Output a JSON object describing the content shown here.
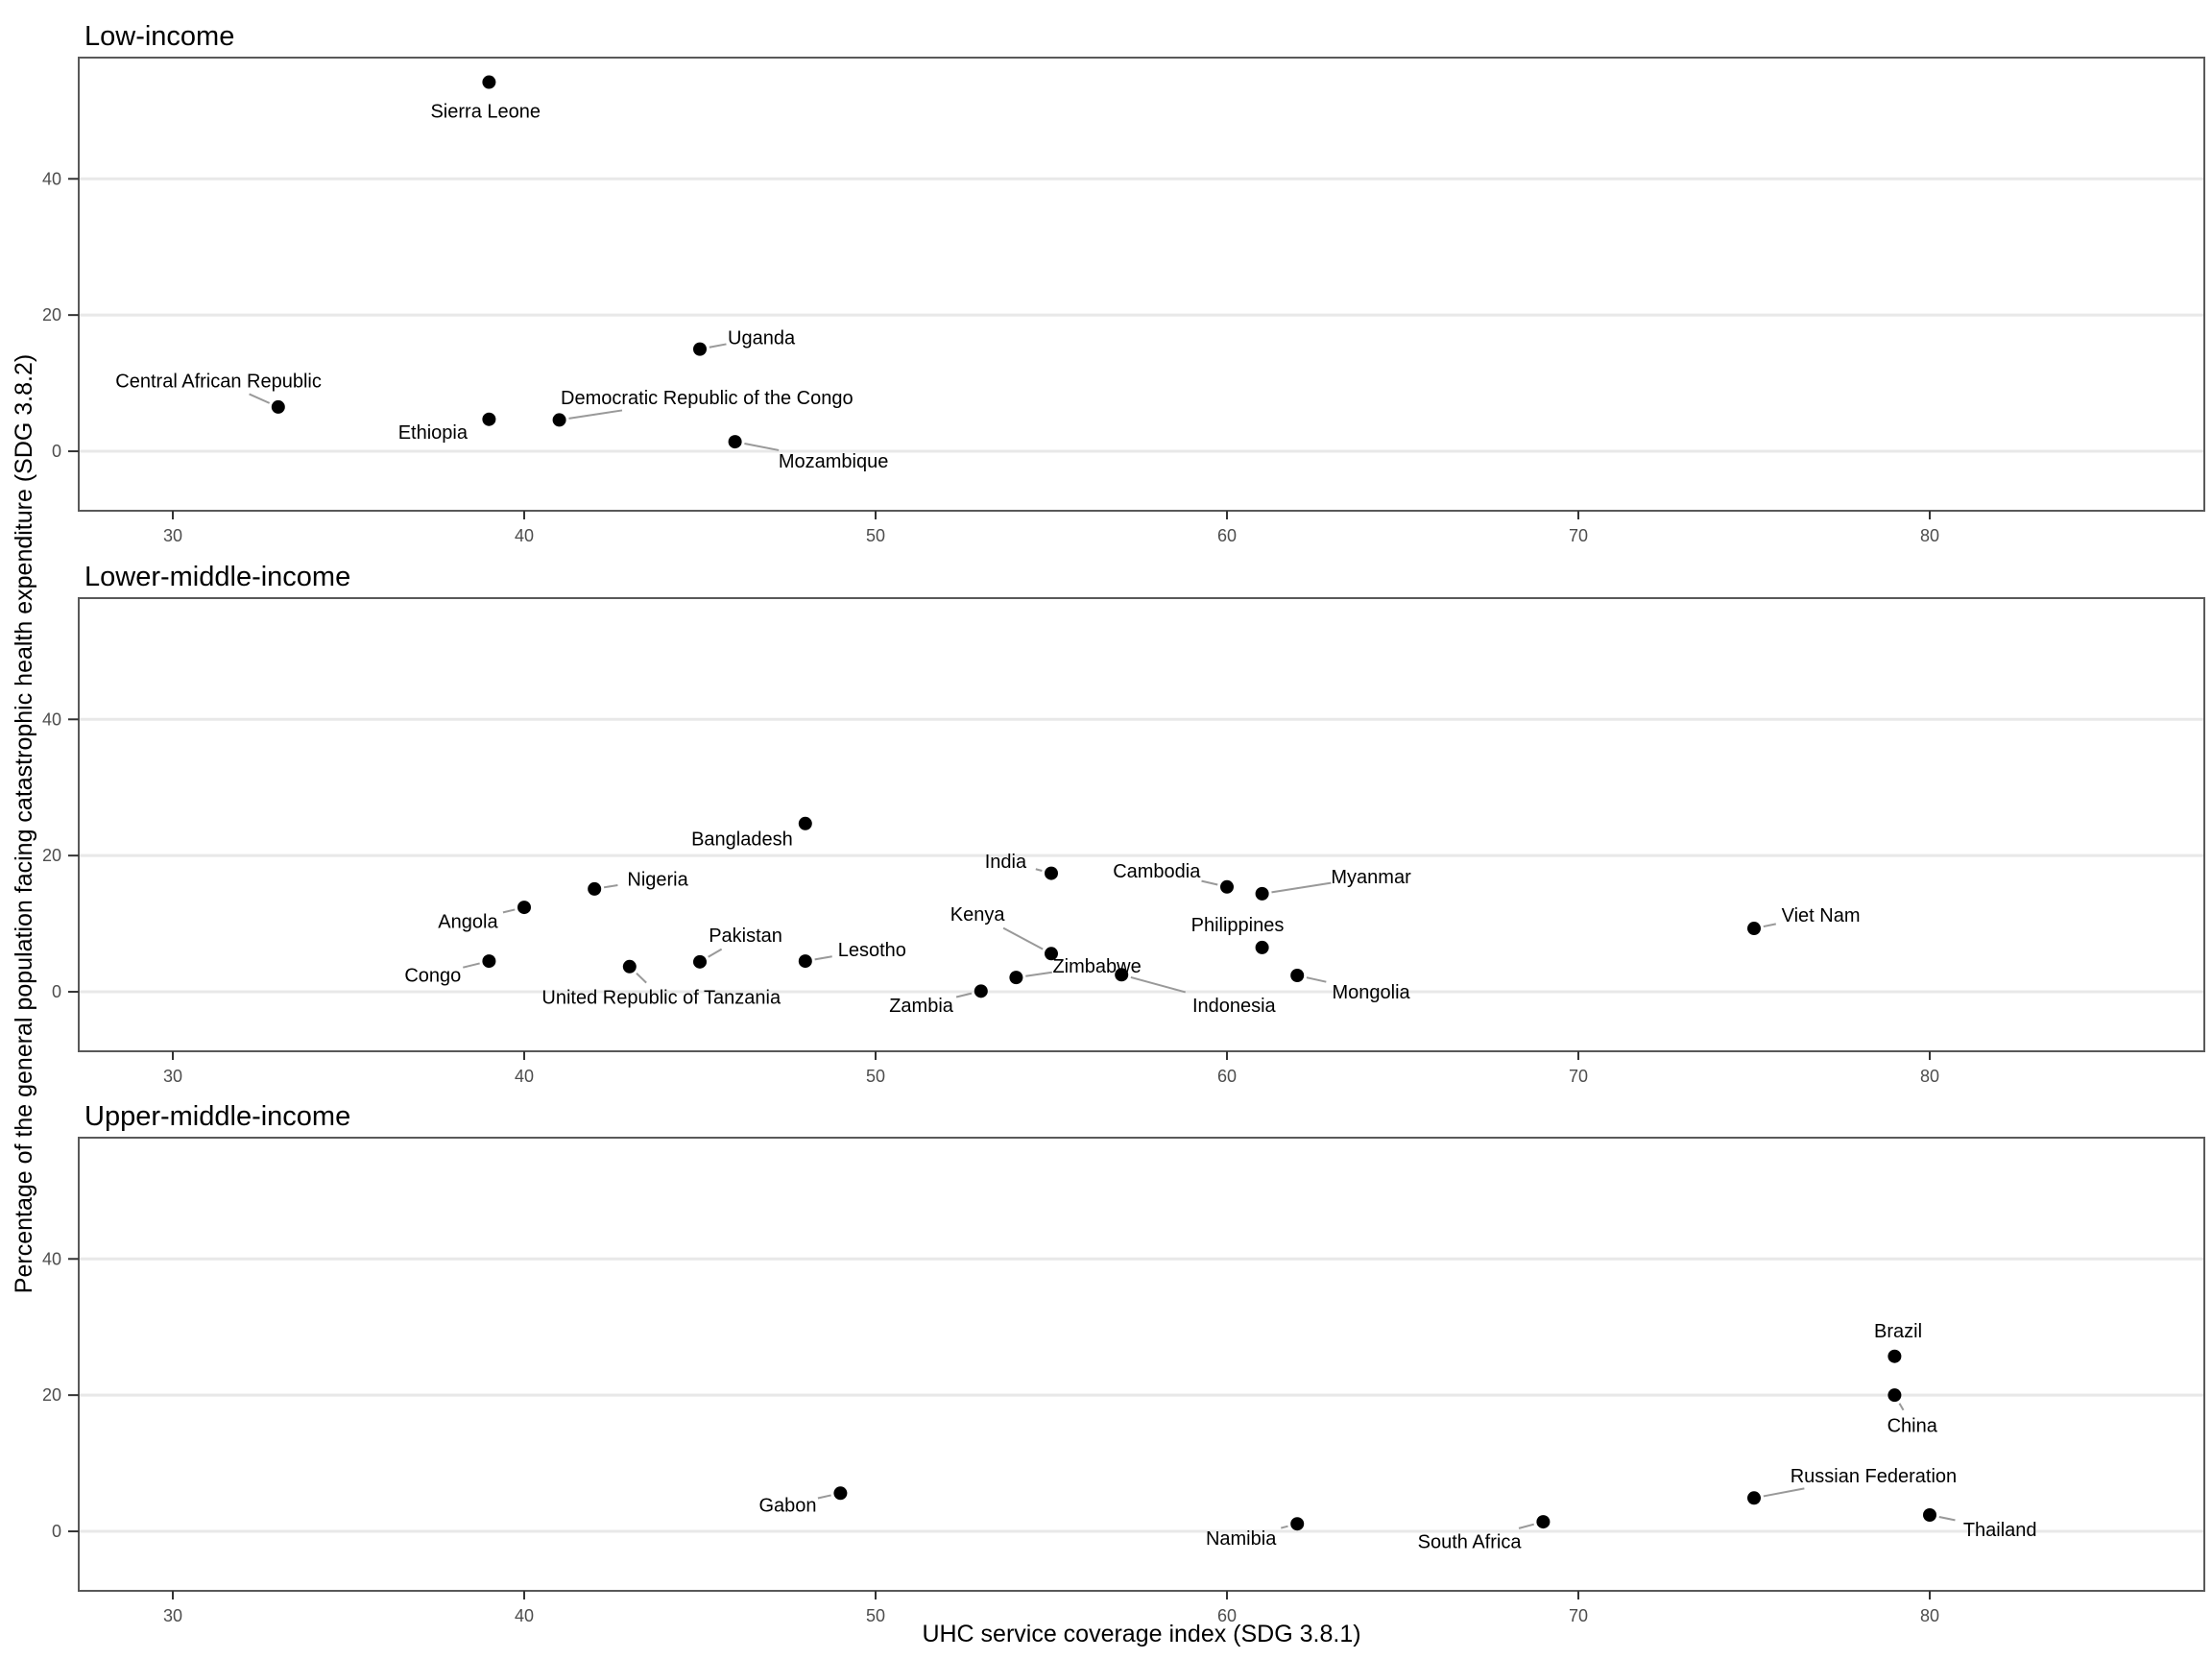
{
  "chart_data": {
    "type": "scatter",
    "title": "",
    "xlabel": "UHC service coverage index (SDG 3.8.1)",
    "ylabel": "Percentage of the general population facing catastrophic health expenditure (SDG 3.8.2)",
    "x_ticks": [
      30,
      40,
      50,
      60,
      70,
      80
    ],
    "y_ticks": [
      0,
      20,
      40
    ],
    "xlim": [
      27.3,
      87.8
    ],
    "ylim": [
      -8.8,
      57.8
    ],
    "grid": "horizontal-major-only",
    "legend": "none",
    "point_color": "#000000",
    "label_color": "#000000",
    "leader_color": "#999999",
    "gridline_color": "#e8e8e8",
    "panel_border_color": "#595959",
    "tick_color": "#333333",
    "tick_label_color": "#4d4d4d",
    "facets": [
      {
        "title": "Low-income",
        "points": [
          {
            "label": "Sierra Leone",
            "x": 39,
            "y": 54.2,
            "lx": 38.9,
            "ly": 50.0
          },
          {
            "label": "Uganda",
            "x": 45,
            "y": 15.0,
            "lx": 46.75,
            "ly": 16.7
          },
          {
            "label": "Central African Republic",
            "x": 33,
            "y": 6.5,
            "lx": 31.3,
            "ly": 10.4
          },
          {
            "label": "Ethiopia",
            "x": 39,
            "y": 4.7,
            "lx": 37.4,
            "ly": 2.8
          },
          {
            "label": "Democratic Republic of the Congo",
            "x": 41,
            "y": 4.6,
            "lx": 45.2,
            "ly": 7.9
          },
          {
            "label": "Mozambique",
            "x": 46,
            "y": 1.4,
            "lx": 48.8,
            "ly": -1.4
          }
        ]
      },
      {
        "title": "Lower-middle-income",
        "points": [
          {
            "label": "Bangladesh",
            "x": 48,
            "y": 24.7,
            "lx": 46.2,
            "ly": 22.5
          },
          {
            "label": "Nigeria",
            "x": 42,
            "y": 15.1,
            "lx": 43.8,
            "ly": 16.6
          },
          {
            "label": "Angola",
            "x": 40,
            "y": 12.4,
            "lx": 38.4,
            "ly": 10.4
          },
          {
            "label": "Congo",
            "x": 39,
            "y": 4.5,
            "lx": 37.4,
            "ly": 2.5
          },
          {
            "label": "United Republic of Tanzania",
            "x": 43,
            "y": 3.7,
            "lx": 43.9,
            "ly": -0.8
          },
          {
            "label": "Pakistan",
            "x": 45,
            "y": 4.4,
            "lx": 46.3,
            "ly": 8.3
          },
          {
            "label": "Lesotho",
            "x": 48,
            "y": 4.5,
            "lx": 49.9,
            "ly": 6.2
          },
          {
            "label": "Zambia",
            "x": 53,
            "y": 0.1,
            "lx": 51.3,
            "ly": -2.0
          },
          {
            "label": "Zimbabwe",
            "x": 54,
            "y": 2.1,
            "lx": 56.3,
            "ly": 3.8
          },
          {
            "label": "Kenya",
            "x": 55,
            "y": 5.6,
            "lx": 52.9,
            "ly": 11.4
          },
          {
            "label": "India",
            "x": 55,
            "y": 17.4,
            "lx": 53.7,
            "ly": 19.2
          },
          {
            "label": "Indonesia",
            "x": 57,
            "y": 2.5,
            "lx": 60.2,
            "ly": -2.0
          },
          {
            "label": "Cambodia",
            "x": 60,
            "y": 15.4,
            "lx": 58.0,
            "ly": 17.8
          },
          {
            "label": "Myanmar",
            "x": 61,
            "y": 14.4,
            "lx": 64.1,
            "ly": 16.9
          },
          {
            "label": "Philippines",
            "x": 61,
            "y": 6.5,
            "lx": 60.3,
            "ly": 9.9
          },
          {
            "label": "Mongolia",
            "x": 62,
            "y": 2.4,
            "lx": 64.1,
            "ly": 0.0
          },
          {
            "label": "Viet Nam",
            "x": 75,
            "y": 9.3,
            "lx": 76.9,
            "ly": 11.3
          }
        ]
      },
      {
        "title": "Upper-middle-income",
        "points": [
          {
            "label": "Gabon",
            "x": 49,
            "y": 5.6,
            "lx": 47.5,
            "ly": 3.9
          },
          {
            "label": "Namibia",
            "x": 62,
            "y": 1.1,
            "lx": 60.4,
            "ly": -1.0
          },
          {
            "label": "South Africa",
            "x": 69,
            "y": 1.4,
            "lx": 66.9,
            "ly": -1.5
          },
          {
            "label": "Russian Federation",
            "x": 75,
            "y": 4.9,
            "lx": 78.4,
            "ly": 8.2
          },
          {
            "label": "Brazil",
            "x": 79,
            "y": 25.7,
            "lx": 79.1,
            "ly": 29.5
          },
          {
            "label": "China",
            "x": 79,
            "y": 20.0,
            "lx": 79.5,
            "ly": 15.6
          },
          {
            "label": "Thailand",
            "x": 80,
            "y": 2.4,
            "lx": 82.0,
            "ly": 0.3
          }
        ]
      }
    ]
  }
}
